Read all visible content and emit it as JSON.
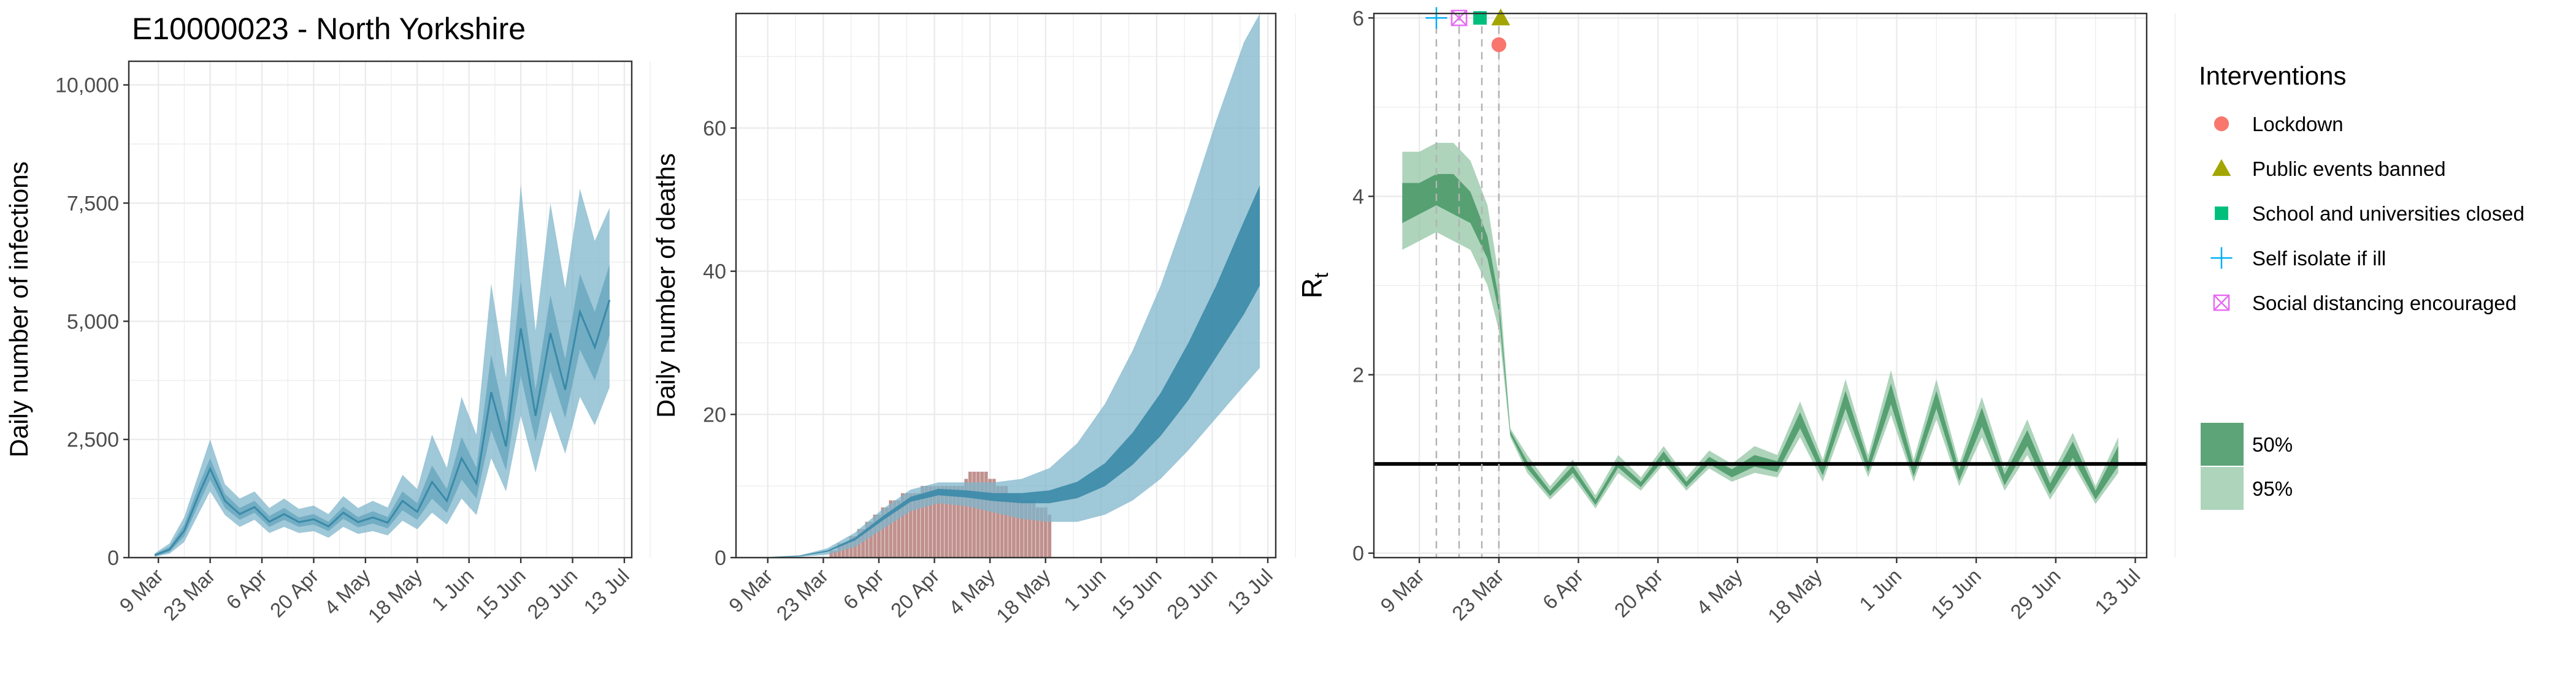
{
  "page_title": "E10000023 - North Yorkshire",
  "colors": {
    "infections_50": "#3a8aa8",
    "infections_95": "#7fb6cb",
    "deaths_bars": "#b57e7a",
    "rt_50": "#4c9a6a",
    "rt_95": "#93c6a4",
    "lockdown": "#f8766d",
    "public_events_banned": "#a3a500",
    "schools_closed": "#00bf7d",
    "self_isolate": "#00b0f6",
    "social_distancing": "#e76bf3",
    "grid": "#ebebeb"
  },
  "chart_data": [
    {
      "type": "area",
      "id": "infections",
      "title": "E10000023 - North Yorkshire",
      "ylabel": "Daily number of infections",
      "xlabel": "",
      "xlim": [
        "2020-03-01",
        "2020-07-15"
      ],
      "ylim": [
        0,
        10500
      ],
      "ytick_values": [
        0,
        2500,
        5000,
        7500,
        10000
      ],
      "ytick_labels": [
        "0",
        "2,500",
        "5,000",
        "7,500",
        "10,000"
      ],
      "xtick_labels": [
        "9 Mar",
        "23 Mar",
        "6 Apr",
        "20 Apr",
        "4 May",
        "18 May",
        "1 Jun",
        "15 Jun",
        "29 Jun",
        "13 Jul"
      ],
      "series": [
        {
          "band": "50%",
          "x": [
            "2020-03-08",
            "2020-03-12",
            "2020-03-16",
            "2020-03-20",
            "2020-03-23",
            "2020-03-27",
            "2020-03-31",
            "2020-04-04",
            "2020-04-08",
            "2020-04-12",
            "2020-04-16",
            "2020-04-20",
            "2020-04-24",
            "2020-04-28",
            "2020-05-02",
            "2020-05-06",
            "2020-05-10",
            "2020-05-14",
            "2020-05-18",
            "2020-05-22",
            "2020-05-26",
            "2020-05-30",
            "2020-06-03",
            "2020-06-07",
            "2020-06-11",
            "2020-06-15",
            "2020-06-19",
            "2020-06-23",
            "2020-06-27",
            "2020-07-01",
            "2020-07-05",
            "2020-07-09"
          ],
          "lower": [
            30,
            120,
            450,
            1150,
            1650,
            1050,
            800,
            950,
            650,
            800,
            650,
            700,
            560,
            820,
            640,
            720,
            620,
            1000,
            800,
            1250,
            950,
            1650,
            1250,
            2700,
            1850,
            3850,
            2450,
            3950,
            2950,
            4400,
            3750,
            4700
          ],
          "upper": [
            70,
            230,
            700,
            1550,
            2100,
            1350,
            1050,
            1200,
            880,
            1050,
            850,
            920,
            760,
            1080,
            860,
            980,
            860,
            1400,
            1150,
            1950,
            1450,
            2550,
            1900,
            4300,
            2850,
            5850,
            3550,
            5550,
            4200,
            6000,
            5200,
            6200
          ]
        },
        {
          "band": "95%",
          "x": [
            "2020-03-08",
            "2020-03-12",
            "2020-03-16",
            "2020-03-20",
            "2020-03-23",
            "2020-03-27",
            "2020-03-31",
            "2020-04-04",
            "2020-04-08",
            "2020-04-12",
            "2020-04-16",
            "2020-04-20",
            "2020-04-24",
            "2020-04-28",
            "2020-05-02",
            "2020-05-06",
            "2020-05-10",
            "2020-05-14",
            "2020-05-18",
            "2020-05-22",
            "2020-05-26",
            "2020-05-30",
            "2020-06-03",
            "2020-06-07",
            "2020-06-11",
            "2020-06-15",
            "2020-06-19",
            "2020-06-23",
            "2020-06-27",
            "2020-07-01",
            "2020-07-05",
            "2020-07-09"
          ],
          "lower": [
            20,
            80,
            330,
            950,
            1400,
            900,
            650,
            800,
            520,
            650,
            520,
            560,
            420,
            650,
            500,
            560,
            470,
            780,
            600,
            950,
            700,
            1250,
            900,
            2100,
            1400,
            3000,
            1800,
            3100,
            2200,
            3400,
            2800,
            3600
          ],
          "upper": [
            90,
            300,
            860,
            1800,
            2500,
            1550,
            1250,
            1400,
            1050,
            1250,
            1030,
            1100,
            920,
            1300,
            1050,
            1200,
            1060,
            1750,
            1450,
            2600,
            1900,
            3400,
            2600,
            5800,
            3800,
            7900,
            4800,
            7500,
            5700,
            7800,
            6700,
            7400
          ]
        },
        {
          "band": "median",
          "x": [
            "2020-03-08",
            "2020-03-12",
            "2020-03-16",
            "2020-03-20",
            "2020-03-23",
            "2020-03-27",
            "2020-03-31",
            "2020-04-04",
            "2020-04-08",
            "2020-04-12",
            "2020-04-16",
            "2020-04-20",
            "2020-04-24",
            "2020-04-28",
            "2020-05-02",
            "2020-05-06",
            "2020-05-10",
            "2020-05-14",
            "2020-05-18",
            "2020-05-22",
            "2020-05-26",
            "2020-05-30",
            "2020-06-03",
            "2020-06-07",
            "2020-06-11",
            "2020-06-15",
            "2020-06-19",
            "2020-06-23",
            "2020-06-27",
            "2020-07-01",
            "2020-07-05",
            "2020-07-09"
          ],
          "values": [
            50,
            170,
            570,
            1350,
            1880,
            1200,
            920,
            1070,
            760,
            920,
            750,
            810,
            660,
            950,
            750,
            850,
            740,
            1200,
            970,
            1600,
            1200,
            2100,
            1570,
            3500,
            2350,
            4850,
            3000,
            4750,
            3550,
            5200,
            4450,
            5450
          ]
        }
      ]
    },
    {
      "type": "area",
      "id": "deaths",
      "ylabel": "Daily number of deaths",
      "xlabel": "",
      "xlim": [
        "2020-03-01",
        "2020-07-15"
      ],
      "ylim": [
        0,
        76
      ],
      "ytick_values": [
        0,
        20,
        40,
        60
      ],
      "ytick_labels": [
        "0",
        "20",
        "40",
        "60"
      ],
      "xtick_labels": [
        "9 Mar",
        "23 Mar",
        "6 Apr",
        "20 Apr",
        "4 May",
        "18 May",
        "1 Jun",
        "15 Jun",
        "29 Jun",
        "13 Jul"
      ],
      "series": [
        {
          "band": "95%",
          "x": [
            "2020-03-10",
            "2020-03-17",
            "2020-03-24",
            "2020-03-31",
            "2020-04-07",
            "2020-04-14",
            "2020-04-21",
            "2020-04-28",
            "2020-05-05",
            "2020-05-12",
            "2020-05-19",
            "2020-05-26",
            "2020-06-02",
            "2020-06-09",
            "2020-06-16",
            "2020-06-23",
            "2020-06-30",
            "2020-07-07",
            "2020-07-11"
          ],
          "lower": [
            0,
            0.1,
            0.4,
            1.5,
            4,
            6.5,
            7.6,
            7.2,
            6.3,
            5.4,
            5,
            5,
            6,
            8,
            11,
            15,
            19.5,
            24,
            26.5
          ],
          "upper": [
            0.1,
            0.3,
            1.3,
            3.5,
            6.8,
            9.5,
            10.5,
            10.5,
            10.5,
            11,
            12.5,
            16,
            21.5,
            29,
            38,
            49,
            61,
            72,
            76
          ]
        },
        {
          "band": "50%",
          "x": [
            "2020-03-10",
            "2020-03-17",
            "2020-03-24",
            "2020-03-31",
            "2020-04-07",
            "2020-04-14",
            "2020-04-21",
            "2020-04-28",
            "2020-05-05",
            "2020-05-12",
            "2020-05-19",
            "2020-05-26",
            "2020-06-02",
            "2020-06-09",
            "2020-06-16",
            "2020-06-23",
            "2020-06-30",
            "2020-07-07",
            "2020-07-11"
          ],
          "lower": [
            0,
            0.2,
            0.8,
            2.4,
            5.2,
            7.8,
            8.7,
            8.4,
            7.9,
            7.6,
            7.6,
            8.3,
            10,
            13,
            17,
            22,
            28,
            34,
            38
          ],
          "upper": [
            0.1,
            0.3,
            1.0,
            2.8,
            5.8,
            8.5,
            9.6,
            9.4,
            9.0,
            9.0,
            9.4,
            10.6,
            13.2,
            17.5,
            23,
            30,
            38,
            47,
            52
          ]
        }
      ],
      "bars": {
        "x_start": "2020-03-25",
        "values": [
          1,
          1,
          2,
          2,
          2,
          3,
          3,
          4,
          4,
          5,
          5,
          6,
          6,
          7,
          7,
          8,
          8,
          8,
          9,
          9,
          9,
          9,
          9,
          10,
          10,
          10,
          10,
          10,
          10,
          10,
          10,
          10,
          10,
          10,
          11,
          12,
          12,
          12,
          12,
          12,
          11,
          11,
          10,
          10,
          10,
          9,
          9,
          9,
          8,
          8,
          8,
          8,
          7,
          7,
          7,
          6
        ]
      }
    },
    {
      "type": "area",
      "id": "rt",
      "ylabel_main": "R",
      "ylabel_sub": "t",
      "xlabel": "",
      "xlim": [
        "2020-03-01",
        "2020-07-15"
      ],
      "ylim": [
        -0.05,
        6.05
      ],
      "ytick_values": [
        0,
        2,
        4,
        6
      ],
      "ytick_labels": [
        "0",
        "2",
        "4",
        "6"
      ],
      "xtick_labels": [
        "9 Mar",
        "23 Mar",
        "6 Apr",
        "20 Apr",
        "4 May",
        "18 May",
        "1 Jun",
        "15 Jun",
        "29 Jun",
        "13 Jul"
      ],
      "reference_line": 1,
      "series": [
        {
          "band": "95%",
          "x": [
            "2020-03-06",
            "2020-03-09",
            "2020-03-12",
            "2020-03-15",
            "2020-03-18",
            "2020-03-21",
            "2020-03-23",
            "2020-03-25",
            "2020-03-28",
            "2020-04-01",
            "2020-04-05",
            "2020-04-09",
            "2020-04-13",
            "2020-04-17",
            "2020-04-21",
            "2020-04-25",
            "2020-04-29",
            "2020-05-03",
            "2020-05-07",
            "2020-05-11",
            "2020-05-15",
            "2020-05-19",
            "2020-05-23",
            "2020-05-27",
            "2020-05-31",
            "2020-06-04",
            "2020-06-08",
            "2020-06-12",
            "2020-06-16",
            "2020-06-20",
            "2020-06-24",
            "2020-06-28",
            "2020-07-02",
            "2020-07-06",
            "2020-07-10"
          ],
          "lower": [
            3.4,
            3.5,
            3.6,
            3.5,
            3.4,
            3.0,
            2.5,
            1.3,
            0.9,
            0.6,
            0.85,
            0.5,
            0.9,
            0.7,
            1.0,
            0.7,
            0.95,
            0.8,
            0.9,
            0.85,
            1.3,
            0.8,
            1.5,
            0.85,
            1.55,
            0.8,
            1.5,
            0.75,
            1.3,
            0.7,
            1.1,
            0.6,
            1.0,
            0.55,
            0.9
          ],
          "upper": [
            4.5,
            4.5,
            4.6,
            4.6,
            4.4,
            3.9,
            3.1,
            1.4,
            1.1,
            0.75,
            1.05,
            0.65,
            1.1,
            0.85,
            1.2,
            0.85,
            1.15,
            1.0,
            1.2,
            1.1,
            1.7,
            1.05,
            1.95,
            1.1,
            2.05,
            1.05,
            1.95,
            1.0,
            1.75,
            0.95,
            1.5,
            0.85,
            1.35,
            0.75,
            1.3
          ]
        },
        {
          "band": "50%",
          "x": [
            "2020-03-06",
            "2020-03-09",
            "2020-03-12",
            "2020-03-15",
            "2020-03-18",
            "2020-03-21",
            "2020-03-23",
            "2020-03-25",
            "2020-03-28",
            "2020-04-01",
            "2020-04-05",
            "2020-04-09",
            "2020-04-13",
            "2020-04-17",
            "2020-04-21",
            "2020-04-25",
            "2020-04-29",
            "2020-05-03",
            "2020-05-07",
            "2020-05-11",
            "2020-05-15",
            "2020-05-19",
            "2020-05-23",
            "2020-05-27",
            "2020-05-31",
            "2020-06-04",
            "2020-06-08",
            "2020-06-12",
            "2020-06-16",
            "2020-06-20",
            "2020-06-24",
            "2020-06-28",
            "2020-07-02",
            "2020-07-06",
            "2020-07-10"
          ],
          "lower": [
            3.7,
            3.8,
            3.9,
            3.8,
            3.7,
            3.3,
            2.7,
            1.33,
            0.95,
            0.64,
            0.9,
            0.54,
            0.96,
            0.74,
            1.05,
            0.74,
            1.0,
            0.85,
            0.97,
            0.91,
            1.4,
            0.87,
            1.62,
            0.91,
            1.67,
            0.86,
            1.62,
            0.81,
            1.42,
            0.76,
            1.2,
            0.66,
            1.07,
            0.6,
            0.98
          ],
          "upper": [
            4.15,
            4.15,
            4.25,
            4.25,
            4.05,
            3.55,
            2.85,
            1.37,
            1.03,
            0.7,
            0.98,
            0.6,
            1.03,
            0.8,
            1.14,
            0.8,
            1.08,
            0.94,
            1.1,
            1.03,
            1.58,
            0.98,
            1.82,
            1.03,
            1.9,
            0.98,
            1.82,
            0.93,
            1.63,
            0.88,
            1.38,
            0.78,
            1.25,
            0.7,
            1.2
          ]
        }
      ],
      "interventions": [
        {
          "name": "Self isolate if ill",
          "date": "2020-03-12",
          "y": 6.0,
          "shape": "plus",
          "color_key": "self_isolate"
        },
        {
          "name": "Social distancing encouraged",
          "date": "2020-03-16",
          "y": 6.0,
          "shape": "boxx",
          "color_key": "social_distancing"
        },
        {
          "name": "School and universities closed",
          "date": "2020-03-20",
          "y": 6.0,
          "shape": "square",
          "color_key": "schools_closed"
        },
        {
          "name": "Public events banned",
          "date": "2020-03-23",
          "y": 6.0,
          "shape": "triangle",
          "color_key": "public_events_banned"
        },
        {
          "name": "Lockdown",
          "date": "2020-03-23",
          "y": 5.7,
          "shape": "circle",
          "color_key": "lockdown"
        }
      ]
    }
  ],
  "legend": {
    "interventions_title": "Interventions",
    "interventions": [
      {
        "label": "Lockdown",
        "shape": "circle",
        "color_key": "lockdown"
      },
      {
        "label": "Public events banned",
        "shape": "triangle",
        "color_key": "public_events_banned"
      },
      {
        "label": "School and universities closed",
        "shape": "square",
        "color_key": "schools_closed"
      },
      {
        "label": "Self isolate if ill",
        "shape": "plus",
        "color_key": "self_isolate"
      },
      {
        "label": "Social distancing encouraged",
        "shape": "boxx",
        "color_key": "social_distancing"
      }
    ],
    "bands": [
      {
        "label": "50%",
        "color_key": "rt_50"
      },
      {
        "label": "95%",
        "color_key": "rt_95"
      }
    ]
  }
}
